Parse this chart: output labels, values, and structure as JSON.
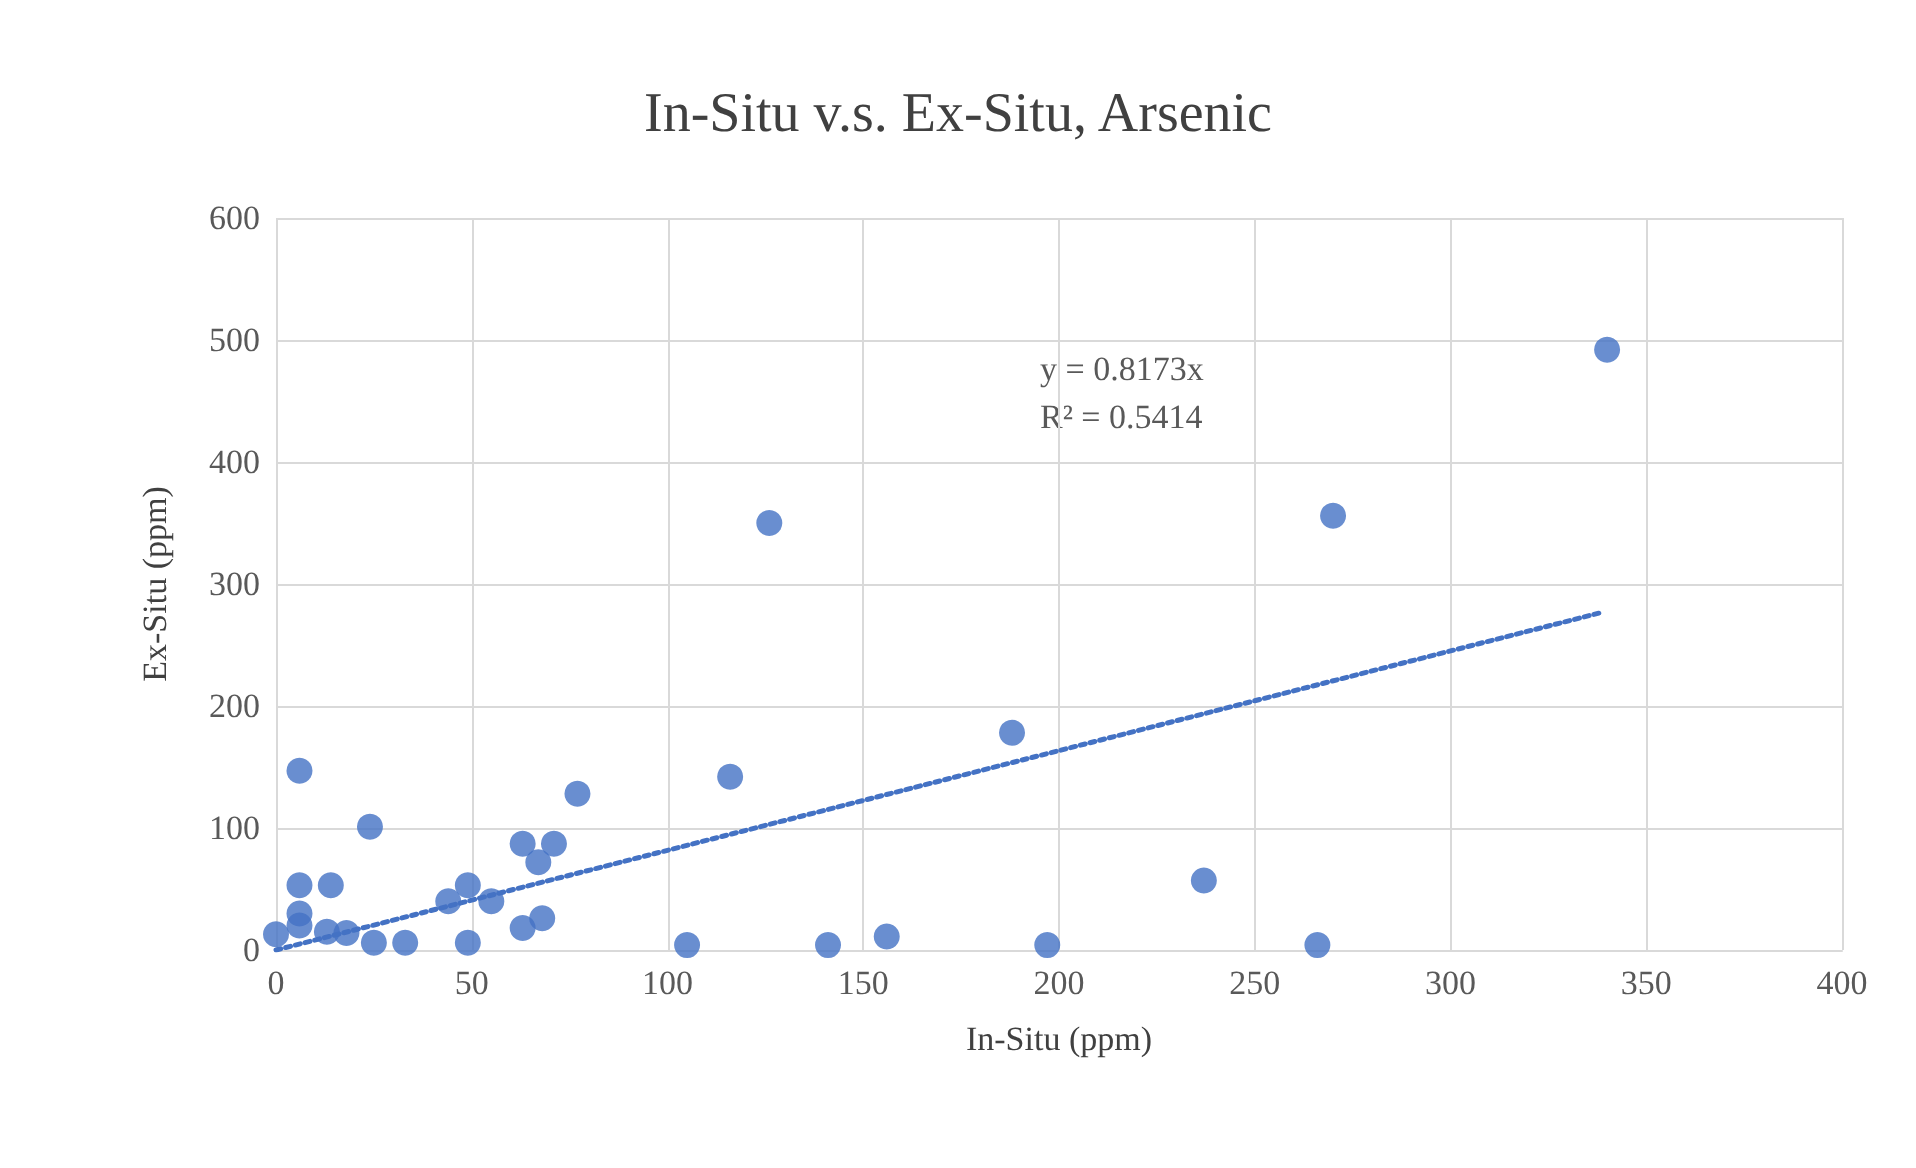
{
  "chart_data": {
    "type": "scatter",
    "title": "In-Situ v.s. Ex-Situ, Arsenic",
    "xlabel": "In-Situ (ppm)",
    "ylabel": "Ex-Situ (ppm)",
    "annotations": [
      "y = 0.8173x",
      "R² = 0.5414"
    ],
    "xlim": [
      0,
      400
    ],
    "xticks": [
      0,
      50,
      100,
      150,
      200,
      250,
      300,
      350,
      400
    ],
    "ylim": [
      0,
      600
    ],
    "yticks": [
      0,
      100,
      200,
      300,
      400,
      500,
      600
    ],
    "grid": true,
    "marker": "circle",
    "series": [
      {
        "color": "#4472c4",
        "x": [
          6,
          24,
          6,
          14,
          6,
          0,
          6,
          13,
          18,
          25,
          33,
          49,
          44,
          49,
          55,
          63,
          71,
          67,
          77,
          63,
          68,
          126,
          116,
          188,
          105,
          141,
          156,
          197,
          237,
          266,
          270,
          340
        ],
        "values": [
          147,
          101,
          53,
          53,
          30,
          13,
          20,
          15,
          14,
          6,
          6,
          6,
          40,
          53,
          40,
          87,
          87,
          72,
          128,
          18,
          26,
          350,
          142,
          178,
          4,
          4,
          11,
          4,
          57,
          4,
          356,
          492
        ]
      },
      {
        "type": "line",
        "color": "#4472c4",
        "line_style": "dotted",
        "marker": "none",
        "x": [
          0,
          339
        ],
        "values": [
          0,
          277
        ]
      }
    ]
  }
}
